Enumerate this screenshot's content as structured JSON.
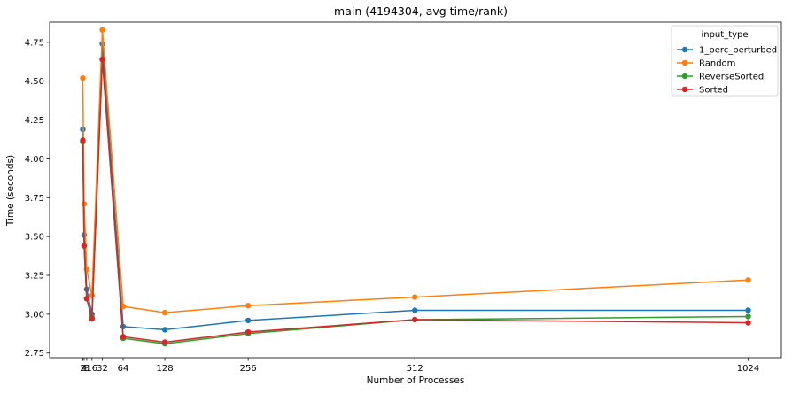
{
  "chart_data": {
    "type": "line",
    "title": "main (4194304, avg time/rank)",
    "xlabel": "Number of Processes",
    "ylabel": "Time (seconds)",
    "x": [
      2,
      4,
      8,
      16,
      32,
      64,
      128,
      256,
      512,
      1024
    ],
    "xticks": [
      2,
      4,
      8,
      16,
      32,
      64,
      128,
      256,
      512,
      1024
    ],
    "xtick_labels": [
      "2",
      "4",
      "8",
      "16",
      "32",
      "64",
      "128",
      "256",
      "512",
      "1024"
    ],
    "xlim": [
      -49,
      1075
    ],
    "ylim": [
      2.72,
      4.88
    ],
    "yticks": [
      2.75,
      3.0,
      3.25,
      3.5,
      3.75,
      4.0,
      4.25,
      4.5,
      4.75
    ],
    "ytick_labels": [
      "2.75",
      "3.00",
      "3.25",
      "3.50",
      "3.75",
      "4.00",
      "4.25",
      "4.50",
      "4.75"
    ],
    "grid": false,
    "legend": {
      "title": "input_type",
      "position": "top-right"
    },
    "series": [
      {
        "name": "1_perc_perturbed",
        "color": "#1f77b4",
        "values": [
          4.19,
          3.51,
          3.16,
          3.0,
          4.74,
          2.92,
          2.9,
          2.96,
          3.025,
          3.025
        ]
      },
      {
        "name": "Random",
        "color": "#ff7f0e",
        "values": [
          4.52,
          3.71,
          3.29,
          3.12,
          4.83,
          3.05,
          3.01,
          3.055,
          3.11,
          3.22
        ]
      },
      {
        "name": "ReverseSorted",
        "color": "#2ca02c",
        "values": [
          4.11,
          3.44,
          3.1,
          2.98,
          4.64,
          2.845,
          2.81,
          2.875,
          2.965,
          2.985
        ]
      },
      {
        "name": "Sorted",
        "color": "#d62728",
        "values": [
          4.12,
          3.44,
          3.1,
          2.97,
          4.64,
          2.855,
          2.82,
          2.885,
          2.965,
          2.945
        ]
      }
    ]
  }
}
